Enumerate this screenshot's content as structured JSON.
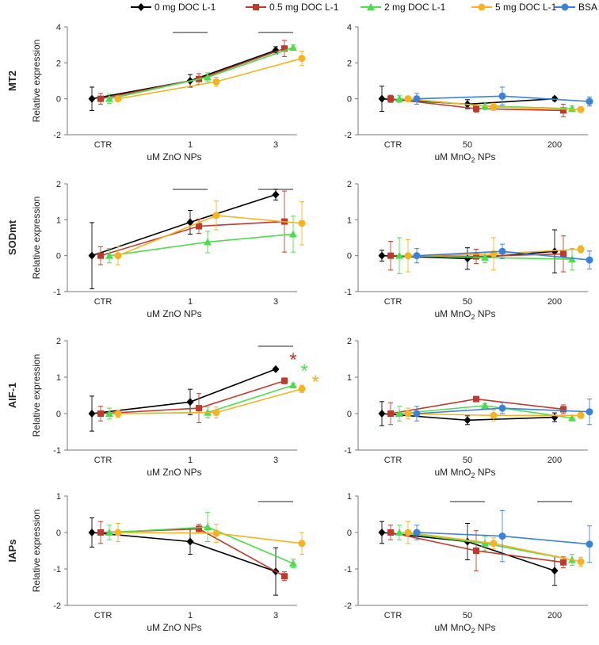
{
  "series_meta": [
    {
      "name": "0 mg DOC L-1",
      "color": "#000000",
      "marker": "diamond"
    },
    {
      "name": "0.5 mg DOC L-1",
      "color": "#c0392b",
      "marker": "square"
    },
    {
      "name": "2 mg DOC L-1",
      "color": "#4cdc4c",
      "marker": "triangle"
    },
    {
      "name": "5 mg DOC L-1",
      "color": "#f5b324",
      "marker": "circle"
    },
    {
      "name": "BSA",
      "color": "#3b82d6",
      "marker": "circle"
    }
  ],
  "chart_data": [
    {
      "type": "line",
      "row": "MT2",
      "ylabel": "Relative  expression",
      "xlabel_pre": "uM ZnO NPs",
      "xlabel_sub": "",
      "categories": [
        "CTR",
        "1",
        "3"
      ],
      "ylim": [
        -2,
        4
      ],
      "yticks": [
        -2,
        0,
        2,
        4
      ],
      "series": [
        {
          "name": "0 mg DOC L-1",
          "values": [
            0.0,
            1.0,
            2.7
          ],
          "errors": [
            0.65,
            0.35,
            0.2
          ]
        },
        {
          "name": "0.5 mg DOC L-1",
          "values": [
            0.0,
            1.1,
            2.8
          ],
          "errors": [
            0.3,
            0.3,
            0.45
          ]
        },
        {
          "name": "2 mg DOC L-1",
          "values": [
            0.0,
            1.2,
            2.85
          ],
          "errors": [
            0.25,
            0.25,
            0.15
          ]
        },
        {
          "name": "5 mg DOC L-1",
          "values": [
            0.0,
            0.95,
            2.25
          ],
          "errors": [
            0.15,
            0.25,
            0.4
          ]
        }
      ],
      "sig_bars": [
        1,
        2
      ],
      "stars": []
    },
    {
      "type": "line",
      "row": "MT2",
      "ylabel": "",
      "xlabel_pre": "uM MnO",
      "xlabel_sub": "2",
      "xlabel_post": " NPs",
      "categories": [
        "CTR",
        "50",
        "200"
      ],
      "ylim": [
        -2,
        4
      ],
      "yticks": [
        -2,
        0,
        2,
        4
      ],
      "series": [
        {
          "name": "0 mg DOC L-1",
          "values": [
            0.0,
            -0.3,
            0.0
          ],
          "errors": [
            0.7,
            0.25,
            0.1
          ]
        },
        {
          "name": "0.5 mg DOC L-1",
          "values": [
            0.0,
            -0.55,
            -0.65
          ],
          "errors": [
            0.2,
            0.2,
            0.35
          ]
        },
        {
          "name": "2 mg DOC L-1",
          "values": [
            0.0,
            -0.4,
            -0.55
          ],
          "errors": [
            0.2,
            0.2,
            0.15
          ]
        },
        {
          "name": "5 mg DOC L-1",
          "values": [
            0.0,
            -0.45,
            -0.6
          ],
          "errors": [
            0.15,
            0.2,
            0.15
          ]
        },
        {
          "name": "BSA",
          "values": [
            0.0,
            0.15,
            -0.15
          ],
          "errors": [
            0.3,
            0.5,
            0.25
          ]
        }
      ],
      "sig_bars": [],
      "stars": []
    },
    {
      "type": "line",
      "row": "SODmt",
      "ylabel": "Relative expression",
      "xlabel_pre": "uM ZnO NPs",
      "xlabel_sub": "",
      "categories": [
        "CTR",
        "1",
        "3"
      ],
      "ylim": [
        -1,
        2
      ],
      "yticks": [
        -1,
        0,
        1,
        2
      ],
      "series": [
        {
          "name": "0 mg DOC L-1",
          "values": [
            0.0,
            0.93,
            1.7
          ],
          "errors": [
            0.92,
            0.33,
            0.15
          ]
        },
        {
          "name": "0.5 mg DOC L-1",
          "values": [
            0.0,
            0.82,
            0.95
          ],
          "errors": [
            0.25,
            0.2,
            0.85
          ]
        },
        {
          "name": "2 mg DOC L-1",
          "values": [
            0.0,
            0.38,
            0.6
          ],
          "errors": [
            0.2,
            0.3,
            0.5
          ]
        },
        {
          "name": "5 mg DOC L-1",
          "values": [
            0.0,
            1.12,
            0.9
          ],
          "errors": [
            0.25,
            0.4,
            0.6
          ]
        }
      ],
      "sig_bars": [
        1,
        2
      ],
      "stars": []
    },
    {
      "type": "line",
      "row": "SODmt",
      "ylabel": "",
      "xlabel_pre": "uM MnO",
      "xlabel_sub": "2",
      "xlabel_post": " NPs",
      "categories": [
        "CTR",
        "50",
        "200"
      ],
      "ylim": [
        -1,
        2
      ],
      "yticks": [
        -1,
        0,
        1,
        2
      ],
      "series": [
        {
          "name": "0 mg DOC L-1",
          "values": [
            0.0,
            -0.08,
            0.12
          ],
          "errors": [
            0.15,
            0.3,
            0.6
          ]
        },
        {
          "name": "0.5 mg DOC L-1",
          "values": [
            0.0,
            -0.02,
            0.05
          ],
          "errors": [
            0.4,
            0.2,
            0.5
          ]
        },
        {
          "name": "2 mg DOC L-1",
          "values": [
            0.0,
            -0.05,
            -0.1
          ],
          "errors": [
            0.5,
            0.15,
            0.3
          ]
        },
        {
          "name": "5 mg DOC L-1",
          "values": [
            0.0,
            0.05,
            0.18
          ],
          "errors": [
            0.45,
            0.45,
            0.1
          ]
        },
        {
          "name": "BSA",
          "values": [
            0.0,
            0.12,
            -0.12
          ],
          "errors": [
            0.2,
            0.2,
            0.25
          ]
        }
      ],
      "sig_bars": [],
      "stars": []
    },
    {
      "type": "line",
      "row": "AIF-1",
      "ylabel": "Relative expression",
      "xlabel_pre": "uM ZnO NPs",
      "xlabel_sub": "",
      "categories": [
        "CTR",
        "1",
        "3"
      ],
      "ylim": [
        -1,
        2
      ],
      "yticks": [
        -1,
        0,
        1,
        2
      ],
      "series": [
        {
          "name": "0 mg DOC L-1",
          "values": [
            0.0,
            0.32,
            1.22
          ],
          "errors": [
            0.48,
            0.35,
            0.03
          ]
        },
        {
          "name": "0.5 mg DOC L-1",
          "values": [
            0.0,
            0.15,
            0.9
          ],
          "errors": [
            0.2,
            0.4,
            0.08
          ]
        },
        {
          "name": "2 mg DOC L-1",
          "values": [
            0.0,
            0.03,
            0.78
          ],
          "errors": [
            0.15,
            0.15,
            0.05
          ]
        },
        {
          "name": "5 mg DOC L-1",
          "values": [
            0.0,
            0.03,
            0.68
          ],
          "errors": [
            0.1,
            0.15,
            0.1
          ]
        }
      ],
      "sig_bars": [
        2
      ],
      "stars": [
        {
          "text": "*",
          "color": "#c0392b"
        },
        {
          "text": "*",
          "color": "#4cdc4c"
        },
        {
          "text": "*",
          "color": "#f5b324"
        }
      ]
    },
    {
      "type": "line",
      "row": "AIF-1",
      "ylabel": "",
      "xlabel_pre": "uM MnO",
      "xlabel_sub": "2",
      "xlabel_post": " NPs",
      "categories": [
        "CTR",
        "50",
        "200"
      ],
      "ylim": [
        -1,
        2
      ],
      "yticks": [
        -1,
        0,
        1,
        2
      ],
      "series": [
        {
          "name": "0 mg DOC L-1",
          "values": [
            0.0,
            -0.18,
            -0.1
          ],
          "errors": [
            0.33,
            0.12,
            0.12
          ]
        },
        {
          "name": "0.5 mg DOC L-1",
          "values": [
            0.0,
            0.4,
            0.12
          ],
          "errors": [
            0.3,
            0.05,
            0.12
          ]
        },
        {
          "name": "2 mg DOC L-1",
          "values": [
            0.0,
            0.22,
            -0.12
          ],
          "errors": [
            0.2,
            0.05,
            0.08
          ]
        },
        {
          "name": "5 mg DOC L-1",
          "values": [
            0.0,
            -0.05,
            -0.05
          ],
          "errors": [
            0.15,
            0.15,
            0.08
          ]
        },
        {
          "name": "BSA",
          "values": [
            0.0,
            0.15,
            0.05
          ],
          "errors": [
            0.2,
            0.15,
            0.35
          ]
        }
      ],
      "sig_bars": [],
      "stars": []
    },
    {
      "type": "line",
      "row": "IAPs",
      "ylabel": "Relative expression",
      "xlabel_pre": "uM ZnO NPs",
      "xlabel_sub": "",
      "categories": [
        "CTR",
        "1",
        "3"
      ],
      "ylim": [
        -2,
        1
      ],
      "yticks": [
        -2,
        -1,
        0,
        1
      ],
      "series": [
        {
          "name": "0 mg DOC L-1",
          "values": [
            0.0,
            -0.25,
            -1.07
          ],
          "errors": [
            0.4,
            0.35,
            0.65
          ]
        },
        {
          "name": "0.5 mg DOC L-1",
          "values": [
            0.0,
            0.1,
            -1.2
          ],
          "errors": [
            0.3,
            0.12,
            0.12
          ]
        },
        {
          "name": "2 mg DOC L-1",
          "values": [
            0.0,
            0.15,
            -0.85
          ],
          "errors": [
            0.2,
            0.4,
            0.12
          ]
        },
        {
          "name": "5 mg DOC L-1",
          "values": [
            0.0,
            -0.02,
            -0.3
          ],
          "errors": [
            0.25,
            0.25,
            0.3
          ]
        }
      ],
      "sig_bars": [
        2
      ],
      "stars": []
    },
    {
      "type": "line",
      "row": "IAPs",
      "ylabel": "",
      "xlabel_pre": "uM MnO",
      "xlabel_sub": "2",
      "xlabel_post": " NPs",
      "categories": [
        "CTR",
        "50",
        "200"
      ],
      "ylim": [
        -2,
        1
      ],
      "yticks": [
        -2,
        -1,
        0,
        1
      ],
      "series": [
        {
          "name": "0 mg DOC L-1",
          "values": [
            0.0,
            -0.25,
            -1.05
          ],
          "errors": [
            0.3,
            0.5,
            0.4
          ]
        },
        {
          "name": "0.5 mg DOC L-1",
          "values": [
            0.0,
            -0.5,
            -0.82
          ],
          "errors": [
            0.2,
            0.55,
            0.15
          ]
        },
        {
          "name": "2 mg DOC L-1",
          "values": [
            0.0,
            -0.3,
            -0.75
          ],
          "errors": [
            0.2,
            0.2,
            0.15
          ]
        },
        {
          "name": "5 mg DOC L-1",
          "values": [
            0.0,
            -0.3,
            -0.8
          ],
          "errors": [
            0.3,
            0.15,
            0.12
          ]
        },
        {
          "name": "BSA",
          "values": [
            0.0,
            -0.1,
            -0.32
          ],
          "errors": [
            0.2,
            0.7,
            0.5
          ]
        }
      ],
      "sig_bars": [
        1,
        2
      ],
      "stars": []
    }
  ]
}
